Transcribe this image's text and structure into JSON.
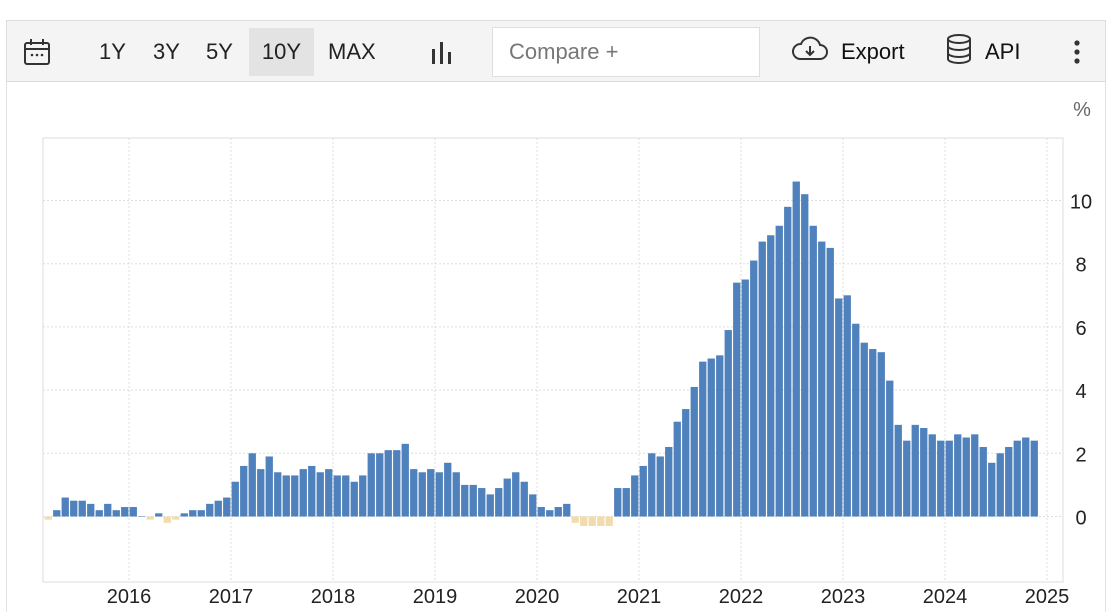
{
  "toolbar": {
    "ranges": [
      "1Y",
      "3Y",
      "5Y",
      "10Y",
      "MAX"
    ],
    "active_range": "10Y",
    "compare_placeholder": "Compare +",
    "export_label": "Export",
    "api_label": "API",
    "icons": [
      "calendar-icon",
      "bar-chart-icon",
      "cloud-download-icon",
      "database-icon",
      "more-vertical-icon"
    ]
  },
  "colors": {
    "positive": "#4f81bd",
    "negative": "#f2dcab",
    "grid": "#dddddd",
    "axis_text": "#222222"
  },
  "chart_data": {
    "type": "bar",
    "unit": "%",
    "start": "2015-03",
    "frequency": "monthly",
    "values": [
      -0.1,
      0.2,
      0.6,
      0.5,
      0.5,
      0.4,
      0.2,
      0.4,
      0.2,
      0.3,
      0.3,
      0.0,
      -0.1,
      0.1,
      -0.2,
      -0.1,
      0.1,
      0.2,
      0.2,
      0.4,
      0.5,
      0.6,
      1.1,
      1.6,
      2.0,
      1.5,
      1.9,
      1.4,
      1.3,
      1.3,
      1.5,
      1.6,
      1.4,
      1.5,
      1.3,
      1.3,
      1.1,
      1.3,
      2.0,
      2.0,
      2.1,
      2.1,
      2.3,
      1.5,
      1.4,
      1.5,
      1.4,
      1.7,
      1.4,
      1.0,
      1.0,
      0.9,
      0.7,
      0.9,
      1.2,
      1.4,
      1.1,
      0.7,
      0.3,
      0.2,
      0.3,
      0.4,
      -0.2,
      -0.3,
      -0.3,
      -0.3,
      -0.3,
      0.9,
      0.9,
      1.3,
      1.6,
      2.0,
      1.9,
      2.2,
      3.0,
      3.4,
      4.1,
      4.9,
      5.0,
      5.1,
      5.9,
      7.4,
      7.5,
      8.1,
      8.7,
      8.9,
      9.2,
      9.8,
      10.6,
      10.2,
      9.2,
      8.7,
      8.5,
      6.9,
      7.0,
      6.1,
      5.5,
      5.3,
      5.2,
      4.3,
      2.9,
      2.4,
      2.9,
      2.8,
      2.6,
      2.4,
      2.4,
      2.6,
      2.5,
      2.6,
      2.2,
      1.7,
      2.0,
      2.2,
      2.4,
      2.5,
      2.4
    ],
    "x_tick_labels": [
      "2016",
      "2017",
      "2018",
      "2019",
      "2020",
      "2021",
      "2022",
      "2023",
      "2024",
      "2025"
    ],
    "y_ticks": [
      0,
      2,
      4,
      6,
      8,
      10
    ],
    "ylim": [
      -2,
      12
    ],
    "grid": true,
    "y_axis_side": "right"
  }
}
